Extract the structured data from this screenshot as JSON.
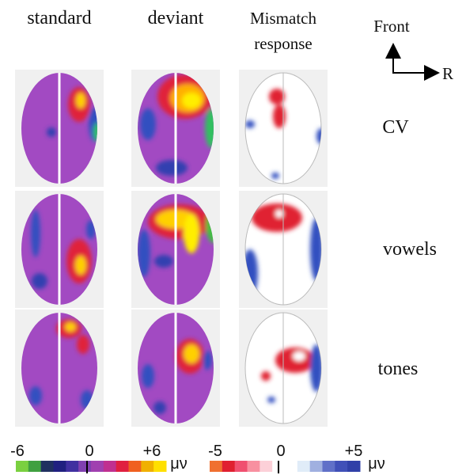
{
  "column_headers": [
    "standard",
    "deviant"
  ],
  "mismatch_header": [
    "Mismatch",
    "response"
  ],
  "orientation": {
    "front": "Front",
    "right": "R"
  },
  "row_labels": [
    "CV",
    "vowels",
    "tones"
  ],
  "colorbars": [
    {
      "labels": [
        "-6",
        "0",
        "+6"
      ],
      "unit": "μν"
    },
    {
      "labels": [
        "-5",
        "0",
        "+5"
      ],
      "unit": "μν"
    }
  ]
}
